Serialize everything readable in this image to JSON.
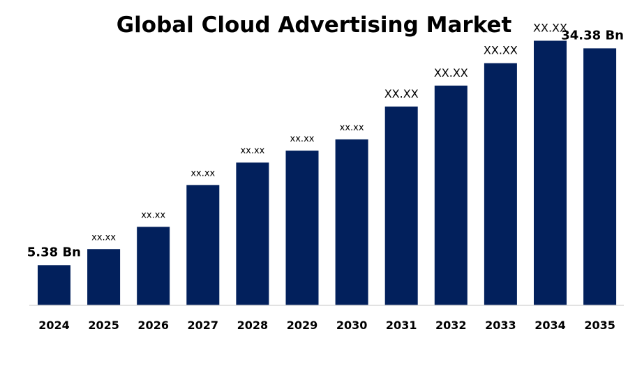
{
  "chart_data": {
    "type": "bar",
    "title": "Global Cloud Advertising Market",
    "xlabel": "",
    "ylabel": "",
    "grid": false,
    "legend": "none",
    "bar_color": "#02205c",
    "axis_color": "#d9d9d9",
    "ylim": [
      0,
      36
    ],
    "categories": [
      "2024",
      "2025",
      "2026",
      "2027",
      "2028",
      "2029",
      "2030",
      "2031",
      "2032",
      "2033",
      "2034",
      "2035"
    ],
    "values": [
      5.38,
      7.53,
      10.5,
      16.1,
      19.1,
      20.7,
      22.2,
      26.6,
      29.4,
      32.4,
      35.4,
      34.38
    ],
    "data_labels": [
      "5.38 Bn",
      "xx.xx",
      "xx.xx",
      "xx.xx",
      "xx.xx",
      "xx.xx",
      "xx.xx",
      "XX.XX",
      "XX.XX",
      "XX.XX",
      "XX.XX",
      "34.38 Bn"
    ]
  }
}
